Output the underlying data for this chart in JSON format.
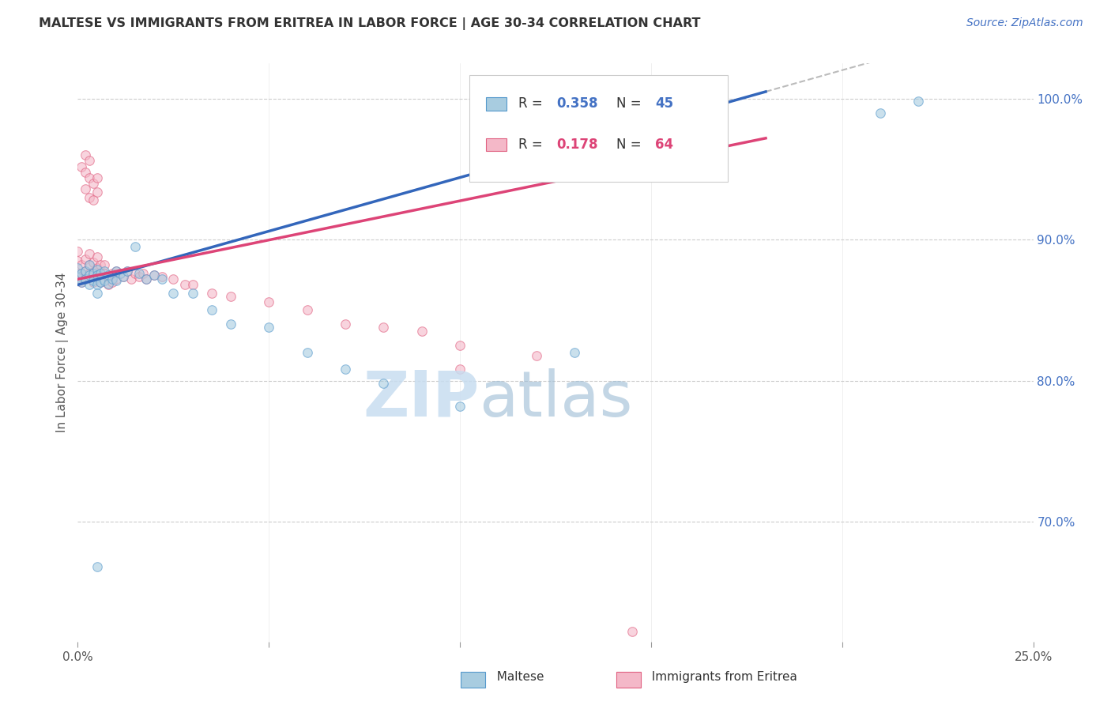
{
  "title": "MALTESE VS IMMIGRANTS FROM ERITREA IN LABOR FORCE | AGE 30-34 CORRELATION CHART",
  "source": "Source: ZipAtlas.com",
  "ylabel": "In Labor Force | Age 30-34",
  "x_min": 0.0,
  "x_max": 0.25,
  "y_min": 0.615,
  "y_max": 1.025,
  "y_ticks": [
    0.7,
    0.8,
    0.9,
    1.0
  ],
  "y_tick_labels": [
    "70.0%",
    "80.0%",
    "90.0%",
    "100.0%"
  ],
  "x_ticks": [
    0.0,
    0.05,
    0.1,
    0.15,
    0.2,
    0.25
  ],
  "x_tick_labels": [
    "0.0%",
    "",
    "",
    "",
    "",
    "25.0%"
  ],
  "legend_r_blue": "0.358",
  "legend_n_blue": "45",
  "legend_r_pink": "0.178",
  "legend_n_pink": "64",
  "legend_label_blue": "Maltese",
  "legend_label_pink": "Immigrants from Eritrea",
  "blue_fill": "#a8cce0",
  "pink_fill": "#f4b8c8",
  "blue_edge": "#5599cc",
  "pink_edge": "#e06080",
  "blue_line_color": "#3366bb",
  "pink_line_color": "#dd4477",
  "dash_line_color": "#bbbbbb",
  "dot_size": 70,
  "dot_alpha": 0.6,
  "blue_line_x0": 0.0,
  "blue_line_x1": 0.18,
  "blue_line_y0": 0.868,
  "blue_line_y1": 1.005,
  "pink_line_x0": 0.0,
  "pink_line_x1": 0.18,
  "pink_line_y0": 0.872,
  "pink_line_y1": 0.972,
  "dash_line_x0": 0.18,
  "dash_line_x1": 0.25,
  "dash_line_y0_blue": 1.005,
  "dash_line_y1_blue": 1.015,
  "background_color": "#ffffff",
  "grid_color": "#cccccc",
  "watermark_zip_color": "#c8ddf0",
  "watermark_atlas_color": "#9bbbd4",
  "blue_dots_x": [
    0.0,
    0.0,
    0.001,
    0.001,
    0.002,
    0.002,
    0.003,
    0.003,
    0.003,
    0.004,
    0.004,
    0.005,
    0.005,
    0.005,
    0.005,
    0.006,
    0.006,
    0.007,
    0.007,
    0.008,
    0.008,
    0.009,
    0.01,
    0.01,
    0.011,
    0.012,
    0.013,
    0.015,
    0.016,
    0.018,
    0.02,
    0.022,
    0.025,
    0.03,
    0.035,
    0.04,
    0.05,
    0.06,
    0.07,
    0.08,
    0.1,
    0.13,
    0.005,
    0.21,
    0.22
  ],
  "blue_dots_y": [
    0.88,
    0.873,
    0.876,
    0.87,
    0.878,
    0.872,
    0.882,
    0.875,
    0.868,
    0.876,
    0.871,
    0.879,
    0.875,
    0.868,
    0.862,
    0.876,
    0.87,
    0.878,
    0.871,
    0.875,
    0.869,
    0.872,
    0.878,
    0.871,
    0.876,
    0.874,
    0.878,
    0.895,
    0.876,
    0.872,
    0.875,
    0.872,
    0.862,
    0.862,
    0.85,
    0.84,
    0.838,
    0.82,
    0.808,
    0.798,
    0.782,
    0.82,
    0.668,
    0.99,
    0.998
  ],
  "pink_dots_x": [
    0.0,
    0.0,
    0.0,
    0.001,
    0.001,
    0.001,
    0.002,
    0.002,
    0.002,
    0.003,
    0.003,
    0.003,
    0.004,
    0.004,
    0.004,
    0.005,
    0.005,
    0.005,
    0.006,
    0.006,
    0.006,
    0.007,
    0.007,
    0.008,
    0.008,
    0.009,
    0.009,
    0.01,
    0.01,
    0.011,
    0.012,
    0.013,
    0.014,
    0.015,
    0.016,
    0.017,
    0.018,
    0.02,
    0.022,
    0.025,
    0.028,
    0.03,
    0.035,
    0.04,
    0.05,
    0.06,
    0.07,
    0.08,
    0.09,
    0.1,
    0.12,
    0.002,
    0.003,
    0.004,
    0.005,
    0.001,
    0.002,
    0.003,
    0.004,
    0.005,
    0.002,
    0.003,
    0.1,
    0.145
  ],
  "pink_dots_y": [
    0.892,
    0.885,
    0.876,
    0.882,
    0.876,
    0.87,
    0.886,
    0.878,
    0.872,
    0.89,
    0.882,
    0.876,
    0.884,
    0.877,
    0.87,
    0.888,
    0.88,
    0.874,
    0.882,
    0.876,
    0.87,
    0.882,
    0.876,
    0.874,
    0.868,
    0.876,
    0.87,
    0.878,
    0.872,
    0.876,
    0.874,
    0.878,
    0.872,
    0.876,
    0.874,
    0.876,
    0.872,
    0.875,
    0.874,
    0.872,
    0.868,
    0.868,
    0.862,
    0.86,
    0.856,
    0.85,
    0.84,
    0.838,
    0.835,
    0.825,
    0.818,
    0.936,
    0.93,
    0.928,
    0.934,
    0.952,
    0.948,
    0.944,
    0.94,
    0.944,
    0.96,
    0.956,
    0.808,
    0.622
  ]
}
